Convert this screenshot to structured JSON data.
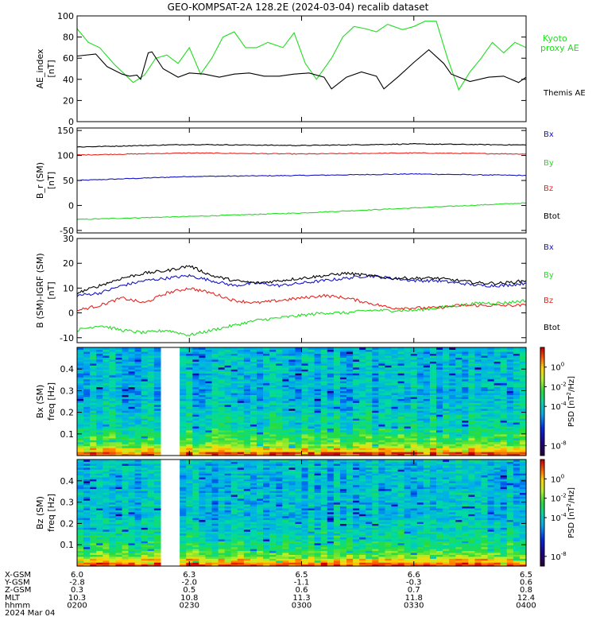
{
  "title": "GEO-KOMPSAT-2A 128.2E (2024-03-04) recalib dataset",
  "time_axis": {
    "start": "02:00",
    "end": "04:00",
    "tick_times": [
      "02:00",
      "02:30",
      "03:00",
      "03:30",
      "04:00"
    ],
    "rows": [
      {
        "label": "X-GSM",
        "values": [
          "6.0",
          "6.3",
          "6.5",
          "6.6",
          "6.5"
        ]
      },
      {
        "label": "Y-GSM",
        "values": [
          "-2.8",
          "-2.0",
          "-1.1",
          "-0.3",
          "0.6"
        ]
      },
      {
        "label": "Z-GSM",
        "values": [
          "0.3",
          "0.5",
          "0.6",
          "0.7",
          "0.8"
        ]
      },
      {
        "label": "MLT",
        "values": [
          "10.3",
          "10.8",
          "11.3",
          "11.8",
          "12.4"
        ]
      },
      {
        "label": "hhmm",
        "values": [
          "0200",
          "0230",
          "0300",
          "0330",
          "0400"
        ]
      }
    ],
    "date_label": "2024 Mar 04"
  },
  "colors": {
    "black": "#000000",
    "red": "#e8251f",
    "green": "#22dd22",
    "blue": "#1515c8"
  },
  "colorbar": {
    "label": "PSD [nT²/Hz]",
    "label_base": "PSD [nT",
    "label_exp": "2",
    "label_tail": "/Hz]",
    "ticks": [
      {
        "mant": "10",
        "exp": "0",
        "log": 0
      },
      {
        "mant": "10",
        "exp": "-2",
        "log": -2
      },
      {
        "mant": "10",
        "exp": "-4",
        "log": -4
      },
      {
        "mant": "10",
        "exp": "-8",
        "log": -8
      }
    ],
    "range_log": [
      -9,
      2
    ],
    "colormap": "rainbow"
  },
  "chart_data": [
    {
      "type": "line",
      "ylabel_line1": "AE_index",
      "ylabel_line2": "[nT]",
      "ylim": [
        0,
        100
      ],
      "yticks": [
        0,
        20,
        40,
        60,
        80,
        100
      ],
      "series": [
        {
          "name": "Kyoto proxy AE",
          "legend_lines": [
            "Kyoto",
            "proxy AE"
          ],
          "color": "green",
          "x": [
            "02:00",
            "02:03",
            "02:06",
            "02:10",
            "02:15",
            "02:18",
            "02:21",
            "02:24",
            "02:27",
            "02:30",
            "02:33",
            "02:36",
            "02:39",
            "02:42",
            "02:45",
            "02:48",
            "02:51",
            "02:55",
            "02:58",
            "03:01",
            "03:04",
            "03:08",
            "03:11",
            "03:14",
            "03:17",
            "03:20",
            "03:23",
            "03:27",
            "03:30",
            "03:33",
            "03:36",
            "03:39",
            "03:42",
            "03:45",
            "03:48",
            "03:51",
            "03:54",
            "03:57",
            "04:00"
          ],
          "y": [
            88,
            75,
            70,
            54,
            37,
            44,
            60,
            63,
            55,
            70,
            45,
            60,
            80,
            85,
            70,
            70,
            75,
            70,
            84,
            55,
            40,
            60,
            80,
            90,
            88,
            85,
            92,
            87,
            90,
            95,
            95,
            60,
            30,
            47,
            60,
            75,
            65,
            75,
            70
          ]
        },
        {
          "name": "Themis AE",
          "legend_lines": [
            "Themis AE"
          ],
          "color": "black",
          "x": [
            "02:00",
            "02:05",
            "02:08",
            "02:12",
            "02:14",
            "02:16",
            "02:17",
            "02:19",
            "02:20",
            "02:23",
            "02:27",
            "02:30",
            "02:34",
            "02:38",
            "02:42",
            "02:46",
            "02:50",
            "02:54",
            "02:58",
            "03:02",
            "03:06",
            "03:08",
            "03:12",
            "03:16",
            "03:20",
            "03:22",
            "03:26",
            "03:30",
            "03:34",
            "03:38",
            "03:40",
            "03:45",
            "03:50",
            "03:54",
            "03:58",
            "04:00"
          ],
          "y": [
            62,
            64,
            52,
            45,
            43,
            44,
            40,
            65,
            66,
            50,
            42,
            46,
            45,
            42,
            45,
            46,
            43,
            43,
            45,
            46,
            42,
            31,
            42,
            47,
            43,
            31,
            43,
            56,
            68,
            55,
            45,
            38,
            42,
            43,
            37,
            42
          ]
        }
      ]
    },
    {
      "type": "line",
      "ylabel_line1": "B_r (SM)",
      "ylabel_line2": "[nT]",
      "ylim": [
        -55,
        155
      ],
      "yticks": [
        -50,
        0,
        50,
        100,
        150
      ],
      "series": [
        {
          "name": "Bx",
          "color": "blue",
          "x": [
            "02:00",
            "02:30",
            "03:00",
            "03:30",
            "04:00"
          ],
          "y": [
            50,
            58,
            60,
            63,
            60
          ]
        },
        {
          "name": "By",
          "color": "green",
          "x": [
            "02:00",
            "02:30",
            "03:00",
            "03:30",
            "04:00"
          ],
          "y": [
            -28,
            -22,
            -15,
            -5,
            5
          ]
        },
        {
          "name": "Bz",
          "color": "red",
          "x": [
            "02:00",
            "02:30",
            "03:00",
            "03:30",
            "04:00"
          ],
          "y": [
            101,
            105,
            103,
            105,
            103
          ]
        },
        {
          "name": "Btot",
          "color": "black",
          "x": [
            "02:00",
            "02:30",
            "03:00",
            "03:30",
            "04:00"
          ],
          "y": [
            117,
            122,
            120,
            123,
            121
          ]
        }
      ]
    },
    {
      "type": "line",
      "ylabel_line1": "B (SM)-IGRF (SM)",
      "ylabel_line2": "[nT]",
      "ylim": [
        -12,
        30
      ],
      "yticks": [
        -10,
        0,
        10,
        20,
        30
      ],
      "series": [
        {
          "name": "Bx",
          "color": "blue",
          "x": [
            "02:00",
            "02:06",
            "02:12",
            "02:18",
            "02:24",
            "02:30",
            "02:36",
            "02:42",
            "02:48",
            "02:54",
            "03:00",
            "03:06",
            "03:12",
            "03:18",
            "03:24",
            "03:30",
            "03:36",
            "03:42",
            "03:48",
            "03:54",
            "04:00"
          ],
          "y": [
            7,
            8,
            11,
            13,
            14,
            15,
            13,
            11,
            12,
            11,
            12,
            13,
            14,
            15,
            14,
            13,
            13,
            12,
            11,
            11,
            12
          ]
        },
        {
          "name": "By",
          "color": "green",
          "x": [
            "02:00",
            "02:06",
            "02:12",
            "02:18",
            "02:24",
            "02:30",
            "02:36",
            "02:42",
            "02:48",
            "02:54",
            "03:00",
            "03:06",
            "03:12",
            "03:18",
            "03:24",
            "03:30",
            "03:36",
            "03:42",
            "03:48",
            "03:54",
            "04:00"
          ],
          "y": [
            -7,
            -5,
            -7,
            -8,
            -7,
            -9,
            -7,
            -5,
            -3,
            -2,
            -1,
            0,
            0,
            1,
            1,
            1,
            2,
            3,
            4,
            4,
            5
          ]
        },
        {
          "name": "Bz",
          "color": "red",
          "x": [
            "02:00",
            "02:06",
            "02:12",
            "02:18",
            "02:24",
            "02:30",
            "02:36",
            "02:42",
            "02:48",
            "02:54",
            "03:00",
            "03:06",
            "03:12",
            "03:18",
            "03:24",
            "03:30",
            "03:36",
            "03:42",
            "03:48",
            "03:54",
            "04:00"
          ],
          "y": [
            1,
            3,
            6,
            4,
            8,
            10,
            8,
            5,
            4,
            5,
            6,
            7,
            6,
            4,
            2,
            2,
            2,
            3,
            3,
            3,
            3
          ]
        },
        {
          "name": "Btot",
          "color": "black",
          "x": [
            "02:00",
            "02:06",
            "02:12",
            "02:18",
            "02:24",
            "02:30",
            "02:36",
            "02:42",
            "02:48",
            "02:54",
            "03:00",
            "03:06",
            "03:12",
            "03:18",
            "03:24",
            "03:30",
            "03:36",
            "03:42",
            "03:48",
            "03:54",
            "04:00"
          ],
          "y": [
            8,
            11,
            14,
            16,
            17,
            19,
            15,
            13,
            12,
            13,
            14,
            15,
            16,
            15,
            14,
            14,
            14,
            13,
            12,
            12,
            13
          ]
        }
      ]
    },
    {
      "type": "heatmap",
      "ylabel_line1": "Bx (SM)",
      "ylabel_line2": "freq [Hz]",
      "ylim": [
        0,
        0.5
      ],
      "yticks": [
        0.1,
        0.2,
        0.3,
        0.4
      ],
      "data_gap": [
        "02:24",
        "02:27"
      ]
    },
    {
      "type": "heatmap",
      "ylabel_line1": "Bz (SM)",
      "ylabel_line2": "freq [Hz]",
      "ylim": [
        0,
        0.5
      ],
      "yticks": [
        0.1,
        0.2,
        0.3,
        0.4
      ],
      "data_gap": [
        "02:24",
        "02:27"
      ]
    }
  ]
}
